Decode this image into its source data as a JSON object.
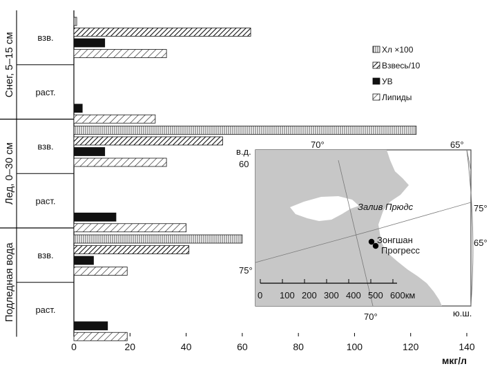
{
  "chart_data": {
    "type": "bar",
    "orientation": "horizontal",
    "xlabel": "мкг/л",
    "xlim": [
      0,
      140
    ],
    "xticks": [
      0,
      20,
      40,
      60,
      80,
      100,
      120,
      140
    ],
    "groups": [
      {
        "label": "Снег, 5–15 см",
        "subgroups": [
          {
            "label": "взв.",
            "values": {
              "chl": 1,
              "susp": 63,
              "uv": 11,
              "lip": 33
            }
          },
          {
            "label": "раст.",
            "values": {
              "chl": null,
              "susp": null,
              "uv": 3,
              "lip": 29
            }
          }
        ]
      },
      {
        "label": "Лед, 0–30 см",
        "subgroups": [
          {
            "label": "взв.",
            "values": {
              "chl": 122,
              "susp": 53,
              "uv": 11,
              "lip": 33
            }
          },
          {
            "label": "раст.",
            "values": {
              "chl": null,
              "susp": null,
              "uv": 15,
              "lip": 40
            }
          }
        ]
      },
      {
        "label": "Подледная вода",
        "subgroups": [
          {
            "label": "взв.",
            "values": {
              "chl": 60,
              "susp": 41,
              "uv": 7,
              "lip": 19
            }
          },
          {
            "label": "раст.",
            "values": {
              "chl": null,
              "susp": null,
              "uv": 12,
              "lip": 19
            }
          }
        ]
      }
    ],
    "series": [
      {
        "key": "chl",
        "name": "Хл ×100",
        "pattern": "vertical-lines"
      },
      {
        "key": "susp",
        "name": "Взвесь/10",
        "pattern": "dense-diagonal"
      },
      {
        "key": "uv",
        "name": "УВ",
        "pattern": "solid-black"
      },
      {
        "key": "lip",
        "name": "Липиды",
        "pattern": "sparse-diagonal"
      }
    ],
    "legend_position": "right-top",
    "inset_map": {
      "sea_label": "Залив Прюдс",
      "stations": [
        "Зонгшан",
        "Прогресс"
      ],
      "lon_labels": [
        "70°",
        "65°",
        "в.д.",
        "70°"
      ],
      "lat_labels": [
        "60",
        "75°",
        "65°",
        "75°",
        "ю.ш."
      ],
      "scale_ticks": [
        "0",
        "100",
        "200",
        "300",
        "400",
        "500",
        "600км"
      ]
    }
  }
}
